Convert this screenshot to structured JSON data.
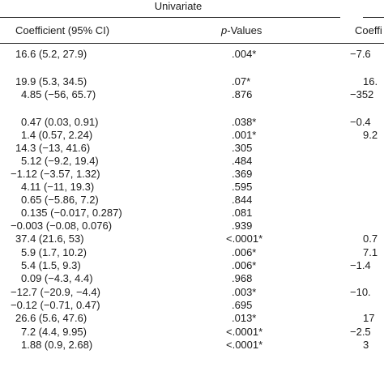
{
  "header": {
    "group_title": "Univariate",
    "col_coefficient": "Coefficient (95% CI)",
    "col_pvalues_italic": "p",
    "col_pvalues_rest": "-Values",
    "col_coefficient_right": "Coeffi"
  },
  "rows": [
    {
      "coef": "16.6 (5.2, 27.9)",
      "p": ".004*",
      "right": "−7.6"
    },
    {
      "coef": "",
      "p": "",
      "right": ""
    },
    {
      "coef": "19.9 (5.3, 34.5)",
      "p": ".07*",
      "right": "16."
    },
    {
      "coef": "4.85 (−56, 65.7)",
      "p": ".876",
      "right": "−352"
    },
    {
      "coef": "",
      "p": "",
      "right": ""
    },
    {
      "coef": "0.47 (0.03, 0.91)",
      "p": ".038*",
      "right": "−0.4"
    },
    {
      "coef": "1.4 (0.57, 2.24)",
      "p": ".001*",
      "right": "9.2"
    },
    {
      "coef": "14.3 (−13, 41.6)",
      "p": ".305",
      "right": ""
    },
    {
      "coef": "5.12 (−9.2, 19.4)",
      "p": ".484",
      "right": ""
    },
    {
      "coef": "−1.12 (−3.57, 1.32)",
      "p": ".369",
      "right": ""
    },
    {
      "coef": "4.11 (−11, 19.3)",
      "p": ".595",
      "right": ""
    },
    {
      "coef": "0.65 (−5.86, 7.2)",
      "p": ".844",
      "right": ""
    },
    {
      "coef": "0.135 (−0.017, 0.287)",
      "p": ".081",
      "right": ""
    },
    {
      "coef": "−0.003 (−0.08, 0.076)",
      "p": ".939",
      "right": ""
    },
    {
      "coef": "37.4 (21.6, 53)",
      "p": "<.0001*",
      "right": "0.7"
    },
    {
      "coef": "5.9 (1.7, 10.2)",
      "p": ".006*",
      "right": "7.1"
    },
    {
      "coef": "5.4 (1.5, 9.3)",
      "p": ".006*",
      "right": "−1.4"
    },
    {
      "coef": "0.09 (−4.3, 4.4)",
      "p": ".968",
      "right": ""
    },
    {
      "coef": "−12.7 (−20.9, −4.4)",
      "p": ".003*",
      "right": "−10."
    },
    {
      "coef": "−0.12 (−0.71, 0.47)",
      "p": ".695",
      "right": ""
    },
    {
      "coef": "26.6 (5.6, 47.6)",
      "p": ".013*",
      "right": "17"
    },
    {
      "coef": "7.2 (4.4, 9.95)",
      "p": "<.0001*",
      "right": "−2.5"
    },
    {
      "coef": "1.88 (0.9, 2.68)",
      "p": "<.0001*",
      "right": "3"
    }
  ]
}
